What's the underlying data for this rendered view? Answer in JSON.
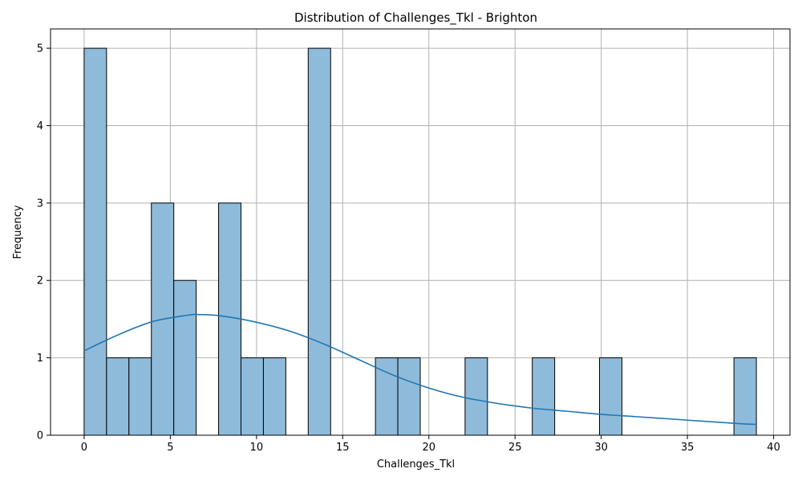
{
  "chart_data": {
    "type": "bar",
    "title": "Distribution of Challenges_Tkl - Brighton",
    "xlabel": "Challenges_Tkl",
    "ylabel": "Frequency",
    "xlim": [
      -1.95,
      40.95
    ],
    "ylim": [
      0,
      5.25
    ],
    "xticks": [
      0,
      5,
      10,
      15,
      20,
      25,
      30,
      35,
      40
    ],
    "yticks": [
      0,
      1,
      2,
      3,
      4,
      5
    ],
    "grid": true,
    "legend": "none",
    "bins": {
      "start": 0,
      "width": 1.3,
      "counts": [
        5,
        1,
        1,
        3,
        2,
        0,
        3,
        1,
        1,
        0,
        5,
        0,
        0,
        1,
        1,
        0,
        0,
        1,
        0,
        0,
        1,
        0,
        0,
        1,
        0,
        0,
        0,
        0,
        0,
        1
      ]
    },
    "kde": {
      "x": [
        0,
        2,
        4,
        6,
        6.6,
        8,
        10,
        12,
        14,
        16,
        18,
        20,
        22,
        24,
        26,
        28,
        30,
        32,
        34,
        36,
        38,
        39
      ],
      "y": [
        1.09,
        1.3,
        1.47,
        1.55,
        1.56,
        1.54,
        1.46,
        1.34,
        1.17,
        0.97,
        0.77,
        0.61,
        0.49,
        0.41,
        0.35,
        0.31,
        0.27,
        0.24,
        0.21,
        0.18,
        0.15,
        0.14
      ]
    },
    "colors": {
      "bar_fill": "#8fbbdb",
      "bar_edge": "#000000",
      "kde_line": "#1f77b4",
      "grid": "#b0b0b0"
    }
  }
}
